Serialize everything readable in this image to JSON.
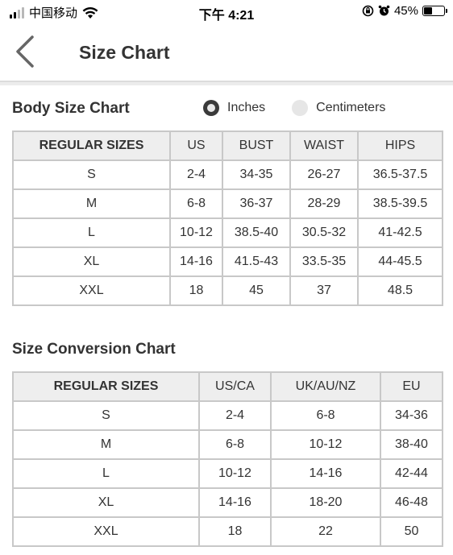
{
  "status_bar": {
    "carrier": "中国移动",
    "time": "下午 4:21",
    "battery": "45%",
    "battery_level": 0.45,
    "icons": [
      "signal-icon",
      "wifi-icon",
      "orientation-lock-icon",
      "alarm-icon",
      "battery-icon"
    ]
  },
  "header": {
    "title": "Size Chart",
    "back_icon": "chevron-left-icon"
  },
  "body_size": {
    "title": "Body Size Chart",
    "units": [
      {
        "label": "Inches",
        "selected": true
      },
      {
        "label": "Centimeters",
        "selected": false
      }
    ],
    "columns": [
      "REGULAR SIZES",
      "US",
      "BUST",
      "WAIST",
      "HIPS"
    ],
    "rows": [
      [
        "S",
        "2-4",
        "34-35",
        "26-27",
        "36.5-37.5"
      ],
      [
        "M",
        "6-8",
        "36-37",
        "28-29",
        "38.5-39.5"
      ],
      [
        "L",
        "10-12",
        "38.5-40",
        "30.5-32",
        "41-42.5"
      ],
      [
        "XL",
        "14-16",
        "41.5-43",
        "33.5-35",
        "44-45.5"
      ],
      [
        "XXL",
        "18",
        "45",
        "37",
        "48.5"
      ]
    ]
  },
  "conversion": {
    "title": "Size Conversion Chart",
    "columns": [
      "REGULAR SIZES",
      "US/CA",
      "UK/AU/NZ",
      "EU"
    ],
    "rows": [
      [
        "S",
        "2-4",
        "6-8",
        "34-36"
      ],
      [
        "M",
        "6-8",
        "10-12",
        "38-40"
      ],
      [
        "L",
        "10-12",
        "14-16",
        "42-44"
      ],
      [
        "XL",
        "14-16",
        "18-20",
        "46-48"
      ],
      [
        "XXL",
        "18",
        "22",
        "50"
      ]
    ]
  }
}
